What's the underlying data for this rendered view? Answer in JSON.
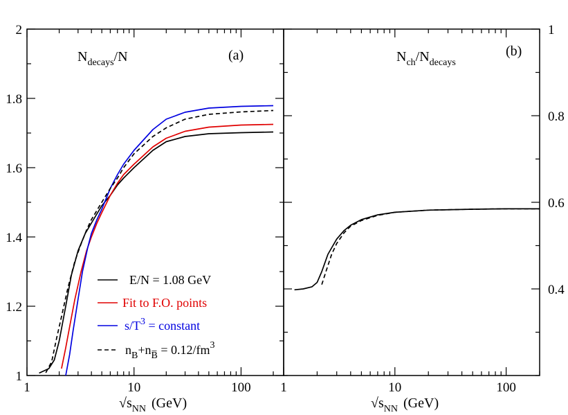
{
  "chart_data": [
    {
      "panel": "(a)",
      "type": "line",
      "title": "N_decays/N",
      "title_main": "N",
      "title_sub": "decays",
      "title_tail": "/N",
      "xlabel_prefix": "√",
      "xlabel_s": "s",
      "xlabel_sub": "NN",
      "xlabel_unit": "(GeV)",
      "x_scale": "log",
      "xlim": [
        1,
        250
      ],
      "ylim": [
        1,
        2
      ],
      "x_ticks": [
        1,
        10,
        100
      ],
      "x_tick_labels": [
        "1",
        "10",
        "100"
      ],
      "y_ticks": [
        1,
        1.2,
        1.4,
        1.6,
        1.8,
        2
      ],
      "y_tick_labels": [
        "1",
        "1.2",
        "1.4",
        "1.6",
        "1.8",
        "2"
      ],
      "grid": false,
      "legend": "lower-center",
      "series": [
        {
          "name": "E/N = 1.08 GeV",
          "color": "#000000",
          "dash": "solid",
          "points": [
            [
              1.3,
              1.007
            ],
            [
              1.6,
              1.02
            ],
            [
              1.8,
              1.045
            ],
            [
              2.0,
              1.1
            ],
            [
              2.3,
              1.2
            ],
            [
              2.6,
              1.29
            ],
            [
              3.0,
              1.36
            ],
            [
              3.5,
              1.41
            ],
            [
              4.0,
              1.44
            ],
            [
              5.0,
              1.49
            ],
            [
              6.0,
              1.52
            ],
            [
              7.0,
              1.55
            ],
            [
              8.0,
              1.57
            ],
            [
              10.0,
              1.6
            ],
            [
              15.0,
              1.65
            ],
            [
              20.0,
              1.675
            ],
            [
              30.0,
              1.69
            ],
            [
              50.0,
              1.698
            ],
            [
              100.0,
              1.701
            ],
            [
              200.0,
              1.703
            ]
          ]
        },
        {
          "name": "Fit to F.O. points",
          "color": "#e00000",
          "dash": "solid",
          "points": [
            [
              2.1,
              1.02
            ],
            [
              2.3,
              1.08
            ],
            [
              2.5,
              1.14
            ],
            [
              2.8,
              1.22
            ],
            [
              3.2,
              1.3
            ],
            [
              3.6,
              1.36
            ],
            [
              4.0,
              1.4
            ],
            [
              4.5,
              1.44
            ],
            [
              5.0,
              1.47
            ],
            [
              6.0,
              1.52
            ],
            [
              7.0,
              1.555
            ],
            [
              8.0,
              1.58
            ],
            [
              10.0,
              1.61
            ],
            [
              15.0,
              1.66
            ],
            [
              20.0,
              1.685
            ],
            [
              30.0,
              1.705
            ],
            [
              50.0,
              1.717
            ],
            [
              100.0,
              1.723
            ],
            [
              200.0,
              1.725
            ]
          ]
        },
        {
          "name": "s/T^3 = constant",
          "color": "#0000e0",
          "dash": "solid",
          "points": [
            [
              2.3,
              1.0
            ],
            [
              2.5,
              1.06
            ],
            [
              2.7,
              1.13
            ],
            [
              3.0,
              1.22
            ],
            [
              3.3,
              1.3
            ],
            [
              3.7,
              1.37
            ],
            [
              4.0,
              1.41
            ],
            [
              4.5,
              1.45
            ],
            [
              5.0,
              1.48
            ],
            [
              6.0,
              1.54
            ],
            [
              7.0,
              1.58
            ],
            [
              8.0,
              1.61
            ],
            [
              10.0,
              1.65
            ],
            [
              15.0,
              1.71
            ],
            [
              20.0,
              1.74
            ],
            [
              30.0,
              1.76
            ],
            [
              50.0,
              1.772
            ],
            [
              100.0,
              1.777
            ],
            [
              200.0,
              1.779
            ]
          ]
        },
        {
          "name": "n_B+n_B̅ = 0.12/fm^3",
          "color": "#000000",
          "dash": "dashed",
          "points": [
            [
              1.5,
              1.008
            ],
            [
              1.7,
              1.04
            ],
            [
              1.9,
              1.11
            ],
            [
              2.1,
              1.17
            ],
            [
              2.4,
              1.25
            ],
            [
              2.8,
              1.33
            ],
            [
              3.2,
              1.38
            ],
            [
              3.6,
              1.42
            ],
            [
              4.0,
              1.45
            ],
            [
              5.0,
              1.5
            ],
            [
              6.0,
              1.54
            ],
            [
              7.0,
              1.57
            ],
            [
              8.0,
              1.6
            ],
            [
              10.0,
              1.64
            ],
            [
              15.0,
              1.69
            ],
            [
              20.0,
              1.715
            ],
            [
              30.0,
              1.74
            ],
            [
              50.0,
              1.754
            ],
            [
              100.0,
              1.761
            ],
            [
              200.0,
              1.765
            ]
          ]
        }
      ],
      "legend_entries": {
        "e1": "E/N = 1.08 GeV",
        "e2": "Fit to F.O. points",
        "e3_main": "s/T",
        "e3_sup": "3",
        "e3_tail": " = constant",
        "e4_n1": "n",
        "e4_sub1": "B",
        "e4_plus": "+n",
        "e4_sub2": "B̅",
        "e4_tail": " = 0.12/fm",
        "e4_sup": "3"
      }
    },
    {
      "panel": "(b)",
      "type": "line",
      "title_main": "N",
      "title_sub1": "ch",
      "title_mid": "/N",
      "title_sub2": "decays",
      "xlabel_prefix": "√",
      "xlabel_s": "s",
      "xlabel_sub": "NN",
      "xlabel_unit": "(GeV)",
      "x_scale": "log",
      "xlim": [
        1,
        200
      ],
      "ylim": [
        0.2,
        1.0
      ],
      "x_ticks": [
        1,
        10,
        100
      ],
      "x_tick_labels": [
        "1",
        "10",
        "100"
      ],
      "y_ticks": [
        0.4,
        0.6,
        0.8,
        1
      ],
      "y_tick_labels": [
        "0.4",
        "0.6",
        "0.8",
        "1"
      ],
      "grid": false,
      "series": [
        {
          "color": "#000000",
          "dash": "solid",
          "points": [
            [
              1.25,
              0.398
            ],
            [
              1.5,
              0.4
            ],
            [
              1.8,
              0.405
            ],
            [
              2.0,
              0.415
            ],
            [
              2.2,
              0.44
            ],
            [
              2.5,
              0.48
            ],
            [
              3.0,
              0.515
            ],
            [
              3.5,
              0.535
            ],
            [
              4.0,
              0.547
            ],
            [
              5.0,
              0.56
            ],
            [
              7.0,
              0.571
            ],
            [
              10.0,
              0.577
            ],
            [
              20.0,
              0.582
            ],
            [
              50.0,
              0.584
            ],
            [
              100.0,
              0.585
            ],
            [
              200.0,
              0.585
            ]
          ]
        },
        {
          "color": "#000000",
          "dash": "dashed",
          "points": [
            [
              2.2,
              0.41
            ],
            [
              2.4,
              0.44
            ],
            [
              2.7,
              0.48
            ],
            [
              3.0,
              0.505
            ],
            [
              3.5,
              0.53
            ],
            [
              4.0,
              0.545
            ],
            [
              5.0,
              0.558
            ],
            [
              7.0,
              0.57
            ],
            [
              10.0,
              0.577
            ],
            [
              20.0,
              0.582
            ],
            [
              50.0,
              0.584
            ],
            [
              100.0,
              0.585
            ],
            [
              200.0,
              0.585
            ]
          ]
        }
      ]
    }
  ]
}
